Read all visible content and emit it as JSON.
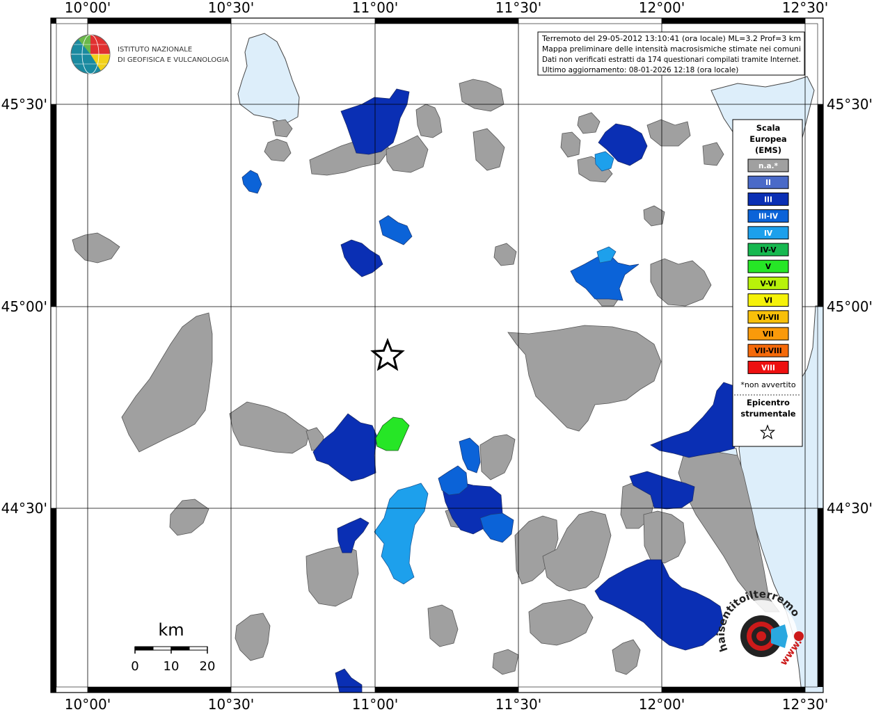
{
  "map": {
    "lon_labels": [
      "10°00'",
      "10°30'",
      "11°00'",
      "11°30'",
      "12°00'",
      "12°30'"
    ],
    "lat_labels": [
      "45°30'",
      "45°00'",
      "44°30'"
    ]
  },
  "logo": {
    "line1": "ISTITUTO NAZIONALE",
    "line2": "DI GEOFISICA E VULCANOLOGIA"
  },
  "info": {
    "line1": "Terremoto del 29-05-2012 13:10:41 (ora locale) ML=3.2 Prof=3 km",
    "line2": "Mappa preliminare delle intensità macrosismiche stimate nei comuni",
    "line3": "Dati non verificati estratti da 174 questionari compilati tramite Internet.",
    "line4": "Ultimo aggiornamento: 08-01-2026 12:18 (ora locale)"
  },
  "legend": {
    "title1": "Scala",
    "title2": "Europea",
    "title3": "(EMS)",
    "items": [
      {
        "label": "n.a.*",
        "color": "#a0a0a0",
        "text_color": "#ffffff"
      },
      {
        "label": "II",
        "color": "#4a6ac8",
        "text_color": "#ffffff"
      },
      {
        "label": "III",
        "color": "#0a2fb4",
        "text_color": "#ffffff"
      },
      {
        "label": "III-IV",
        "color": "#0b63d8",
        "text_color": "#ffffff"
      },
      {
        "label": "IV",
        "color": "#1da0ec",
        "text_color": "#ffffff"
      },
      {
        "label": "IV-V",
        "color": "#16b850",
        "text_color": "#000000"
      },
      {
        "label": "V",
        "color": "#26e626",
        "text_color": "#000000"
      },
      {
        "label": "V-VI",
        "color": "#b8f20a",
        "text_color": "#000000"
      },
      {
        "label": "VI",
        "color": "#f5f20a",
        "text_color": "#000000"
      },
      {
        "label": "VI-VII",
        "color": "#f8c00a",
        "text_color": "#000000"
      },
      {
        "label": "VII",
        "color": "#fa9a0a",
        "text_color": "#000000"
      },
      {
        "label": "VII-VIII",
        "color": "#f56a0a",
        "text_color": "#000000"
      },
      {
        "label": "VIII",
        "color": "#ee1010",
        "text_color": "#ffffff"
      }
    ],
    "footnote": "*non avvertito",
    "epicenter1": "Epicentro",
    "epicenter2": "strumentale"
  },
  "scalebar": {
    "unit": "km",
    "ticks": [
      "0",
      "10",
      "20"
    ]
  },
  "brand": {
    "text": "haisentitoilterremoto.it",
    "url": "www."
  },
  "colors": {
    "na": "#a0a0a0",
    "III": "#0a2fb4",
    "III-IV": "#0b63d8",
    "IV": "#1da0ec",
    "V": "#26e626",
    "water": "#ddeefa"
  }
}
